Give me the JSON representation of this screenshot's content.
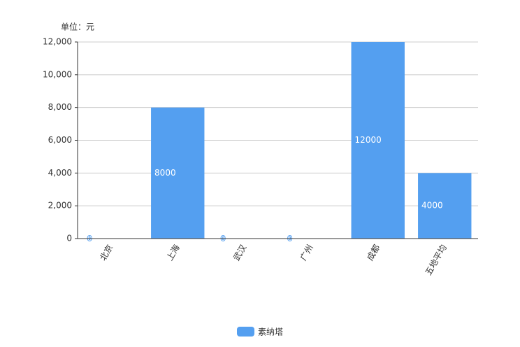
{
  "chart_data": {
    "type": "bar",
    "unit_label": "单位：元",
    "categories": [
      "北京",
      "上海",
      "武汉",
      "广州",
      "成都",
      "五地平均"
    ],
    "series": [
      {
        "name": "素纳塔",
        "color": "#549ff0",
        "values": [
          0,
          8000,
          0,
          0,
          12000,
          4000
        ]
      }
    ],
    "ylim": [
      0,
      12000
    ],
    "yticks": [
      0,
      {
        "value": 2000,
        "label": "2,000"
      },
      {
        "value": 4000,
        "label": "4,000"
      },
      {
        "value": 6000,
        "label": "6,000"
      },
      {
        "value": 8000,
        "label": "8,000"
      },
      {
        "value": 10000,
        "label": "10,000"
      },
      {
        "value": 12000,
        "label": "12,000"
      }
    ],
    "grid": true,
    "legend": "bottom"
  }
}
